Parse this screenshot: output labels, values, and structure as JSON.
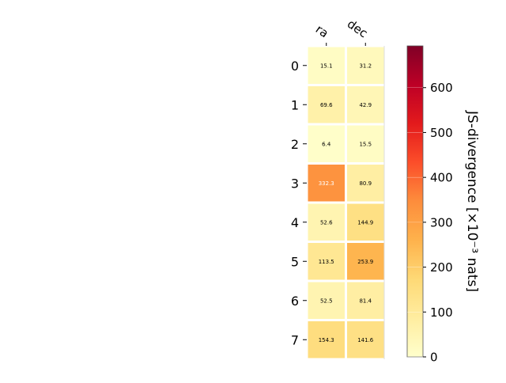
{
  "chart_data": {
    "type": "heatmap",
    "columns": [
      "ra",
      "dec"
    ],
    "rows": [
      "0",
      "1",
      "2",
      "3",
      "4",
      "5",
      "6",
      "7"
    ],
    "values": [
      [
        15.1,
        31.2
      ],
      [
        69.6,
        42.9
      ],
      [
        6.4,
        15.5
      ],
      [
        332.3,
        80.9
      ],
      [
        52.6,
        144.9
      ],
      [
        113.5,
        253.9
      ],
      [
        52.5,
        81.4
      ],
      [
        154.3,
        141.6
      ]
    ],
    "colorbar": {
      "label": "JS-divergence [×10⁻³ nats]",
      "range": [
        0,
        693
      ],
      "ticks": [
        "0",
        "100",
        "200",
        "300",
        "400",
        "500",
        "600"
      ],
      "colormap": "YlOrRd"
    }
  }
}
